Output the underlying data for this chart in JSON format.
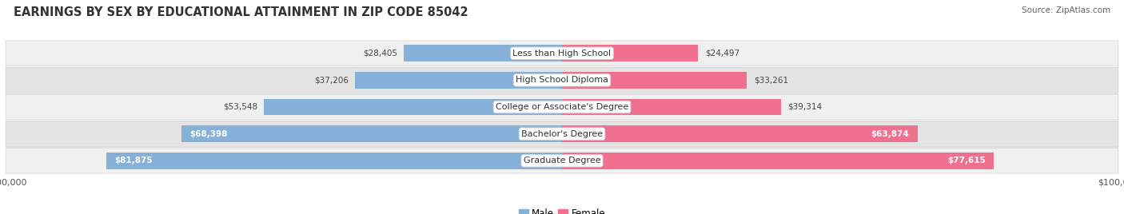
{
  "title": "EARNINGS BY SEX BY EDUCATIONAL ATTAINMENT IN ZIP CODE 85042",
  "source": "Source: ZipAtlas.com",
  "categories": [
    "Less than High School",
    "High School Diploma",
    "College or Associate's Degree",
    "Bachelor's Degree",
    "Graduate Degree"
  ],
  "male_values": [
    28405,
    37206,
    53548,
    68398,
    81875
  ],
  "female_values": [
    24497,
    33261,
    39314,
    63874,
    77615
  ],
  "male_color": "#87b0d8",
  "female_color": "#f07090",
  "axis_max": 100000,
  "fig_bg_color": "#ffffff",
  "row_bg_light": "#f0f0f0",
  "row_bg_dark": "#e4e4e4",
  "title_fontsize": 10.5,
  "source_fontsize": 7.5,
  "bar_label_fontsize": 7.5,
  "category_fontsize": 8,
  "legend_fontsize": 8.5,
  "axis_label_fontsize": 8,
  "male_threshold": 55000,
  "female_threshold": 55000
}
